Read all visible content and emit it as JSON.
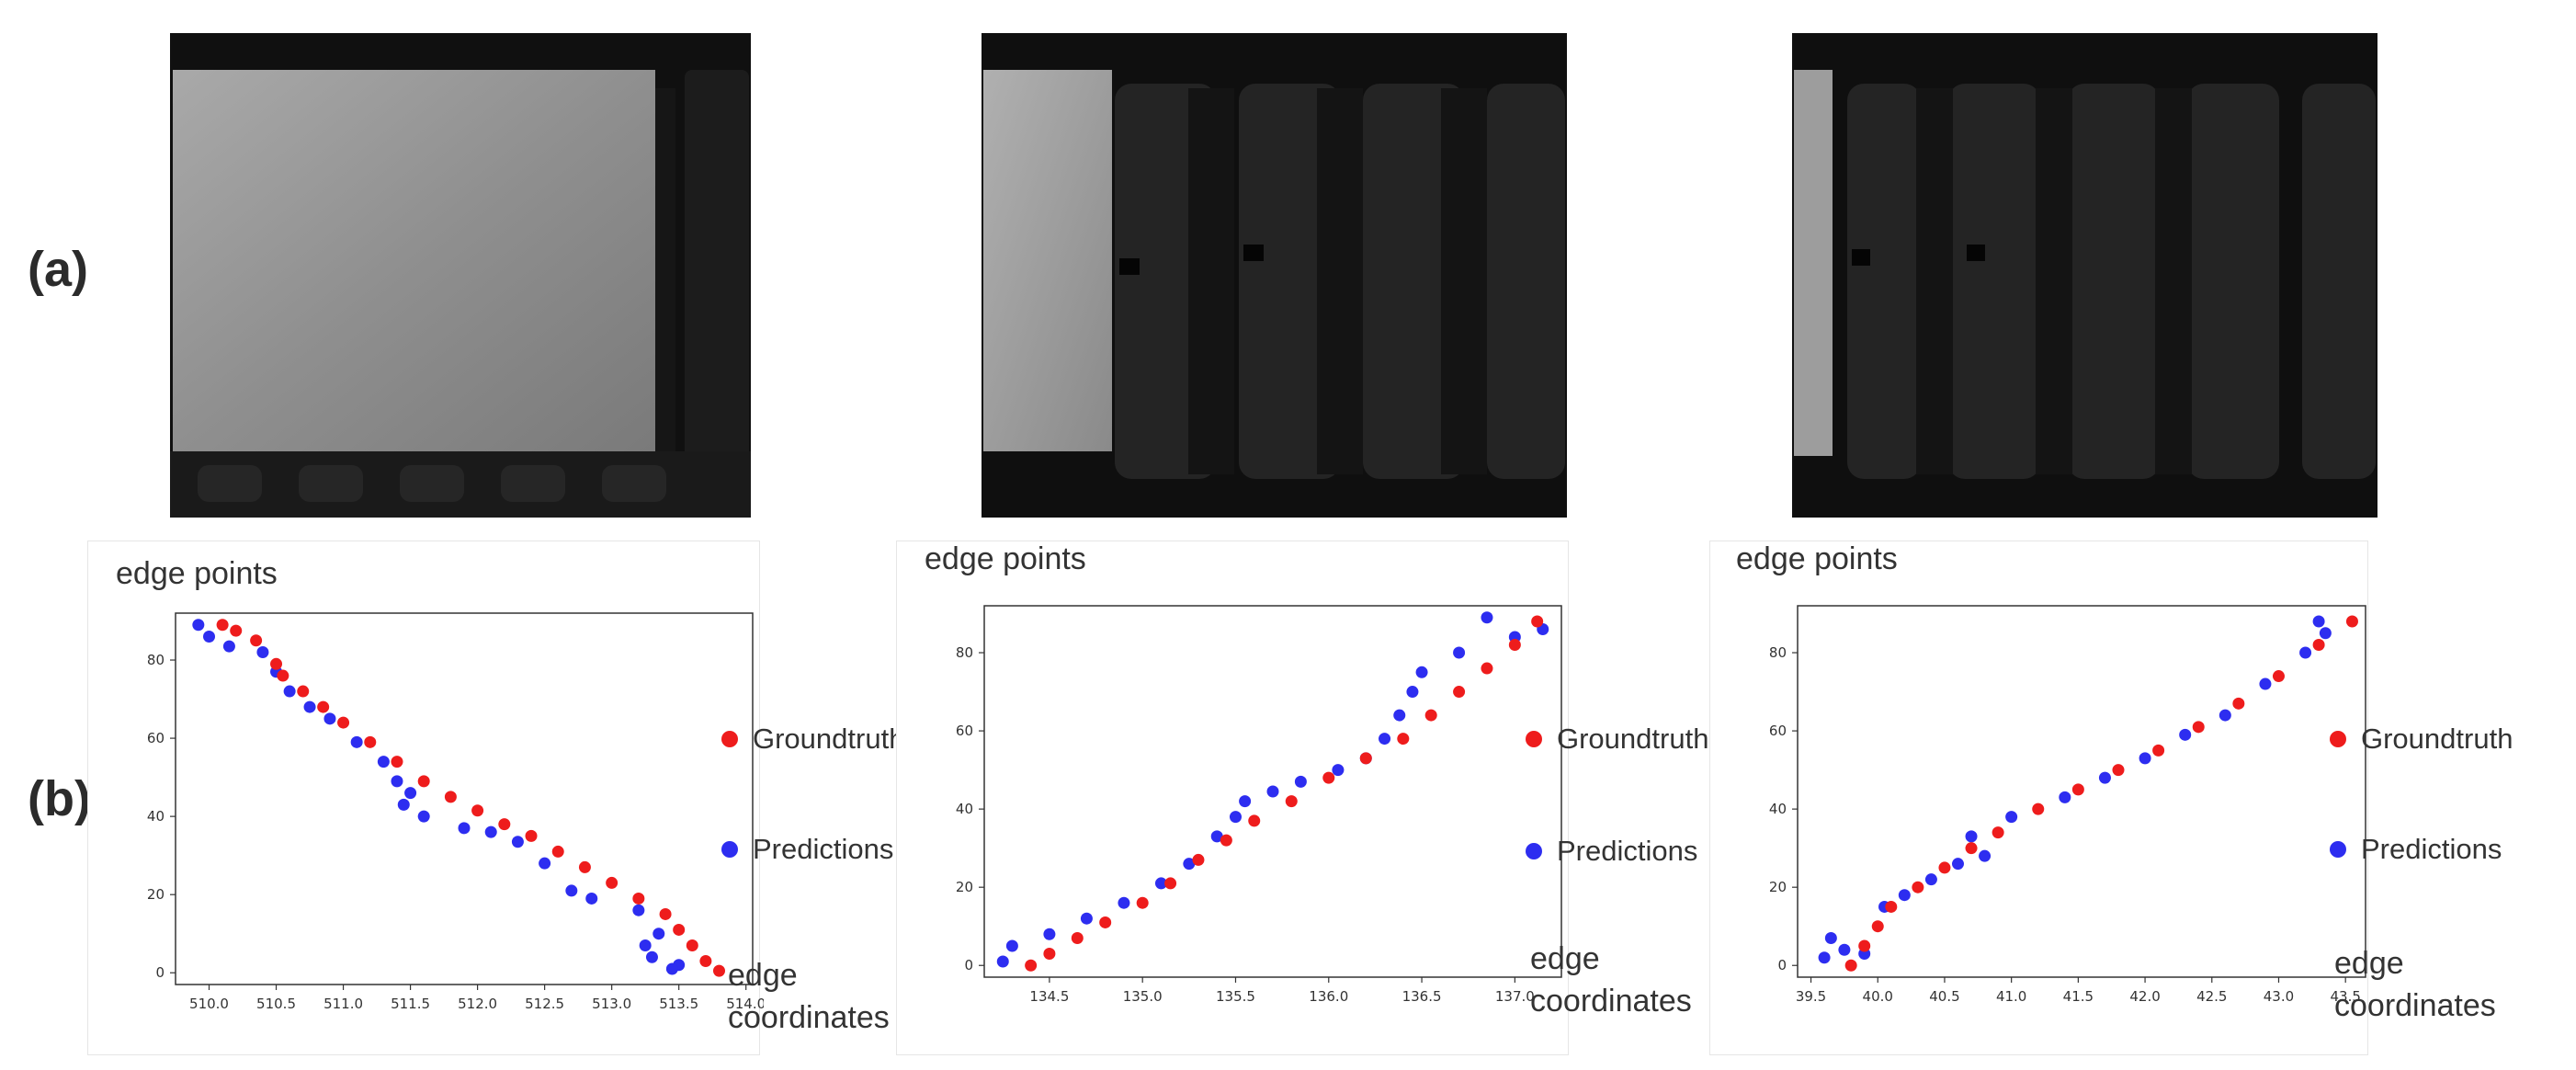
{
  "row_labels": {
    "a": "(a)",
    "b": "(b)"
  },
  "colors": {
    "groundtruth": "#ee1c1c",
    "predictions": "#2d2df0"
  },
  "plots": [
    {
      "y_label": "edge points",
      "x_label_line1": "edge",
      "x_label_line2": "coordinates",
      "legend": {
        "groundtruth": "Groundtruth",
        "predictions": "Predictions"
      }
    },
    {
      "y_label": "edge points",
      "x_label_line1": "edge",
      "x_label_line2": "coordinates",
      "legend": {
        "groundtruth": "Groundtruth",
        "predictions": "Predictions"
      }
    },
    {
      "y_label": "edge points",
      "x_label_line1": "edge",
      "x_label_line2": "coordinates",
      "legend": {
        "groundtruth": "Groundtruth",
        "predictions": "Predictions"
      }
    }
  ],
  "chart_data": [
    {
      "type": "scatter",
      "xlim": [
        509.75,
        514.05
      ],
      "ylim": [
        -3,
        92
      ],
      "xticks": [
        "510.0",
        "510.5",
        "511.0",
        "511.5",
        "512.0",
        "512.5",
        "513.0",
        "513.5",
        "514.0"
      ],
      "yticks": [
        "0",
        "20",
        "40",
        "60",
        "80"
      ],
      "series": [
        {
          "name": "Groundtruth",
          "color": "#ee1c1c",
          "points": [
            [
              510.1,
              89
            ],
            [
              510.2,
              87.5
            ],
            [
              510.35,
              85
            ],
            [
              510.5,
              79
            ],
            [
              510.55,
              76
            ],
            [
              510.7,
              72
            ],
            [
              510.85,
              68
            ],
            [
              511.0,
              64
            ],
            [
              511.2,
              59
            ],
            [
              511.4,
              54
            ],
            [
              511.6,
              49
            ],
            [
              511.8,
              45
            ],
            [
              512.0,
              41.5
            ],
            [
              512.2,
              38
            ],
            [
              512.4,
              35
            ],
            [
              512.6,
              31
            ],
            [
              512.8,
              27
            ],
            [
              513.0,
              23
            ],
            [
              513.2,
              19
            ],
            [
              513.4,
              15
            ],
            [
              513.5,
              11
            ],
            [
              513.6,
              7
            ],
            [
              513.7,
              3
            ],
            [
              513.8,
              0.5
            ]
          ]
        },
        {
          "name": "Predictions",
          "color": "#2d2df0",
          "points": [
            [
              509.92,
              89
            ],
            [
              510.0,
              86
            ],
            [
              510.15,
              83.5
            ],
            [
              510.4,
              82
            ],
            [
              510.5,
              77
            ],
            [
              510.6,
              72
            ],
            [
              510.75,
              68
            ],
            [
              510.9,
              65
            ],
            [
              511.1,
              59
            ],
            [
              511.3,
              54
            ],
            [
              511.4,
              49
            ],
            [
              511.5,
              46
            ],
            [
              511.45,
              43
            ],
            [
              511.6,
              40
            ],
            [
              511.9,
              37
            ],
            [
              512.1,
              36
            ],
            [
              512.3,
              33.5
            ],
            [
              512.5,
              28
            ],
            [
              512.7,
              21
            ],
            [
              512.85,
              19
            ],
            [
              513.2,
              16
            ],
            [
              513.35,
              10
            ],
            [
              513.25,
              7
            ],
            [
              513.3,
              4
            ],
            [
              513.5,
              2
            ],
            [
              513.45,
              1
            ]
          ]
        }
      ]
    },
    {
      "type": "scatter",
      "xlim": [
        134.15,
        137.25
      ],
      "ylim": [
        -3,
        92
      ],
      "xticks": [
        "134.5",
        "135.0",
        "135.5",
        "136.0",
        "136.5",
        "137.0"
      ],
      "yticks": [
        "0",
        "20",
        "40",
        "60",
        "80"
      ],
      "series": [
        {
          "name": "Groundtruth",
          "color": "#ee1c1c",
          "points": [
            [
              134.4,
              0
            ],
            [
              134.5,
              3
            ],
            [
              134.65,
              7
            ],
            [
              134.8,
              11
            ],
            [
              135.0,
              16
            ],
            [
              135.15,
              21
            ],
            [
              135.3,
              27
            ],
            [
              135.45,
              32
            ],
            [
              135.6,
              37
            ],
            [
              135.8,
              42
            ],
            [
              136.0,
              48
            ],
            [
              136.2,
              53
            ],
            [
              136.4,
              58
            ],
            [
              136.55,
              64
            ],
            [
              136.7,
              70
            ],
            [
              136.85,
              76
            ],
            [
              137.0,
              82
            ],
            [
              137.12,
              88
            ]
          ]
        },
        {
          "name": "Predictions",
          "color": "#2d2df0",
          "points": [
            [
              134.25,
              1
            ],
            [
              134.3,
              5
            ],
            [
              134.5,
              8
            ],
            [
              134.7,
              12
            ],
            [
              134.9,
              16
            ],
            [
              135.1,
              21
            ],
            [
              135.25,
              26
            ],
            [
              135.4,
              33
            ],
            [
              135.5,
              38
            ],
            [
              135.55,
              42
            ],
            [
              135.7,
              44.5
            ],
            [
              135.85,
              47
            ],
            [
              136.05,
              50
            ],
            [
              136.2,
              53
            ],
            [
              136.3,
              58
            ],
            [
              136.38,
              64
            ],
            [
              136.45,
              70
            ],
            [
              136.5,
              75
            ],
            [
              136.7,
              80
            ],
            [
              136.85,
              89
            ],
            [
              137.0,
              84
            ],
            [
              137.15,
              86
            ]
          ]
        }
      ]
    },
    {
      "type": "scatter",
      "xlim": [
        39.4,
        43.65
      ],
      "ylim": [
        -3,
        92
      ],
      "xticks": [
        "39.5",
        "40.0",
        "40.5",
        "41.0",
        "41.5",
        "42.0",
        "42.5",
        "43.0",
        "43.5"
      ],
      "yticks": [
        "0",
        "20",
        "40",
        "60",
        "80"
      ],
      "series": [
        {
          "name": "Groundtruth",
          "color": "#ee1c1c",
          "points": [
            [
              39.8,
              0
            ],
            [
              39.9,
              5
            ],
            [
              40.0,
              10
            ],
            [
              40.1,
              15
            ],
            [
              40.3,
              20
            ],
            [
              40.5,
              25
            ],
            [
              40.7,
              30
            ],
            [
              40.9,
              34
            ],
            [
              41.2,
              40
            ],
            [
              41.5,
              45
            ],
            [
              41.8,
              50
            ],
            [
              42.1,
              55
            ],
            [
              42.4,
              61
            ],
            [
              42.7,
              67
            ],
            [
              43.0,
              74
            ],
            [
              43.3,
              82
            ],
            [
              43.55,
              88
            ]
          ]
        },
        {
          "name": "Predictions",
          "color": "#2d2df0",
          "points": [
            [
              39.6,
              2
            ],
            [
              39.65,
              7
            ],
            [
              39.75,
              4
            ],
            [
              39.9,
              3
            ],
            [
              40.05,
              15
            ],
            [
              40.2,
              18
            ],
            [
              40.4,
              22
            ],
            [
              40.6,
              26
            ],
            [
              40.8,
              28
            ],
            [
              40.7,
              33
            ],
            [
              41.0,
              38
            ],
            [
              41.4,
              43
            ],
            [
              41.7,
              48
            ],
            [
              42.0,
              53
            ],
            [
              42.3,
              59
            ],
            [
              42.6,
              64
            ],
            [
              42.9,
              72
            ],
            [
              43.2,
              80
            ],
            [
              43.3,
              88
            ],
            [
              43.35,
              85
            ]
          ]
        }
      ]
    }
  ]
}
